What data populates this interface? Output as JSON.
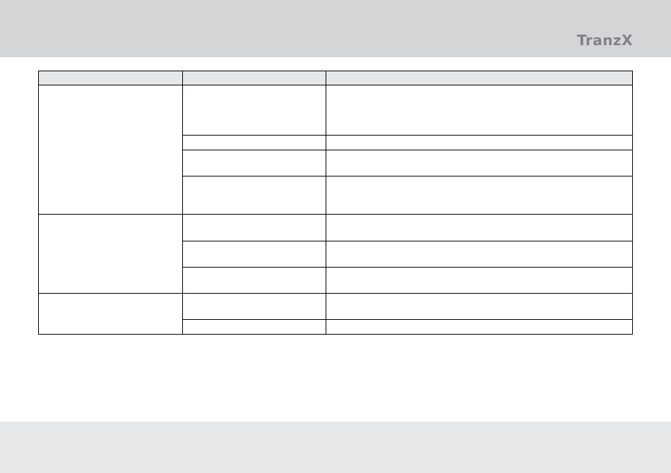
{
  "header": {
    "logo_text": "TranzX",
    "band_color": "#d4d5d7"
  },
  "footer": {
    "band_color": "#e6e7e8"
  },
  "table": {
    "columns": [
      "",
      "",
      ""
    ],
    "groups": [
      {
        "rows": 4
      },
      {
        "rows": 3
      },
      {
        "rows": 2
      }
    ]
  }
}
